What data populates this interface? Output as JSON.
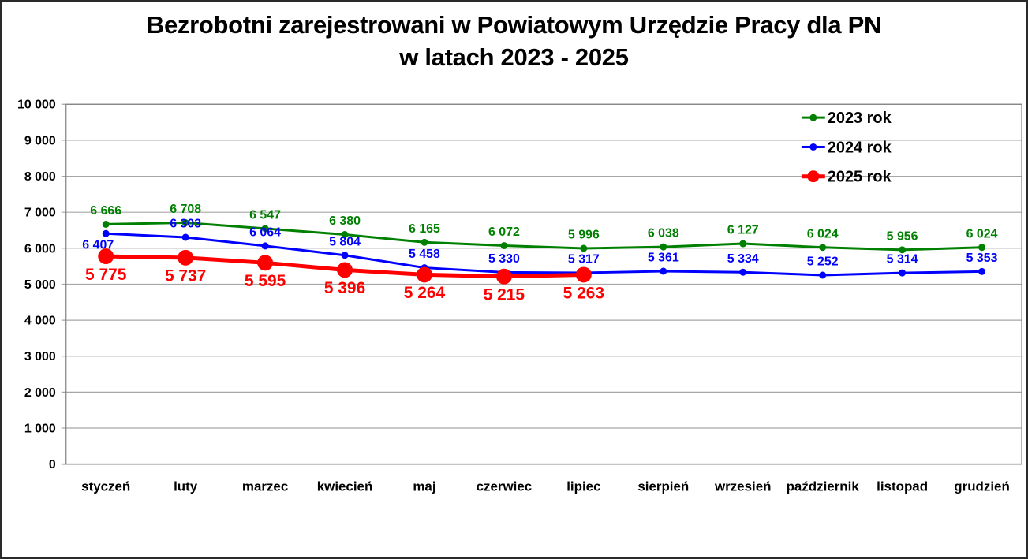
{
  "window": {
    "background": "#FFFFFF",
    "border_color": "#2A2A2A"
  },
  "chart_data": {
    "type": "line",
    "title_lines": [
      "Bezrobotni zarejestrowani w Powiatowym Urzędzie Pracy dla PN",
      "w latach 2023 - 2025"
    ],
    "categories": [
      "styczeń",
      "luty",
      "marzec",
      "kwiecień",
      "maj",
      "czerwiec",
      "lipiec",
      "sierpień",
      "wrzesień",
      "październik",
      "listopad",
      "grudzień"
    ],
    "series": [
      {
        "name": "2023 rok",
        "color": "#008000",
        "values": [
          6666,
          6708,
          6547,
          6380,
          6165,
          6072,
          5996,
          6038,
          6127,
          6024,
          5956,
          6024
        ],
        "line_width": 3,
        "marker_radius": 4.5,
        "label_font_size": 16,
        "label_side": "above"
      },
      {
        "name": "2024 rok",
        "color": "#0000FF",
        "values": [
          6407,
          6303,
          6064,
          5804,
          5458,
          5330,
          5317,
          5361,
          5334,
          5252,
          5314,
          5353
        ],
        "line_width": 3,
        "marker_radius": 4.5,
        "label_font_size": 16,
        "label_side": "above",
        "label_overrides": {
          "0": {
            "side": "below",
            "dx": -10
          }
        }
      },
      {
        "name": "2025 rok",
        "color": "#FF0000",
        "values": [
          5775,
          5737,
          5595,
          5396,
          5264,
          5215,
          5263
        ],
        "line_width": 5,
        "marker_radius": 10,
        "label_font_size": 21,
        "label_side": "below"
      }
    ],
    "y_axis": {
      "min": 0,
      "max": 10000,
      "step": 1000,
      "label_font_size": 16
    },
    "x_axis": {
      "label_font_size": 17
    },
    "grid": {
      "show": true,
      "color": "#A6A6A6"
    },
    "axis_color": "#808080",
    "text_color": "#000000",
    "legend": {
      "position": "top-right",
      "font_size": 20
    }
  }
}
